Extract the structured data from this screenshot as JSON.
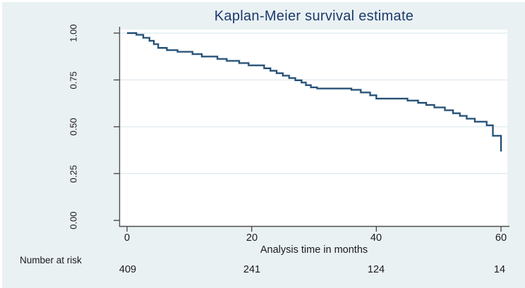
{
  "chart_data": {
    "type": "line",
    "subtype": "step-survival",
    "title": "Kaplan-Meier survival estimate",
    "xlabel": "Analysis time in months",
    "ylabel": "",
    "xlim": [
      0,
      60
    ],
    "ylim": [
      0,
      1
    ],
    "xticks": [
      "0",
      "20",
      "40",
      "60"
    ],
    "xtick_values": [
      0,
      20,
      40,
      60
    ],
    "yticks": [
      "0.00",
      "0.25",
      "0.50",
      "0.75",
      "1.00"
    ],
    "ytick_values": [
      0,
      0.25,
      0.5,
      0.75,
      1.0
    ],
    "grid": true,
    "legend_position": "none",
    "series": [
      {
        "name": "Kaplan-Meier survival estimate",
        "points": [
          [
            0,
            1.0
          ],
          [
            1.5,
            0.991
          ],
          [
            2.6,
            0.975
          ],
          [
            3.6,
            0.959
          ],
          [
            4.3,
            0.941
          ],
          [
            5.0,
            0.921
          ],
          [
            6.4,
            0.909
          ],
          [
            8.1,
            0.9
          ],
          [
            10.5,
            0.888
          ],
          [
            12.0,
            0.875
          ],
          [
            14.5,
            0.862
          ],
          [
            16.0,
            0.852
          ],
          [
            18.0,
            0.84
          ],
          [
            19.5,
            0.828
          ],
          [
            22.0,
            0.812
          ],
          [
            23.0,
            0.799
          ],
          [
            24.0,
            0.786
          ],
          [
            25.0,
            0.773
          ],
          [
            26.0,
            0.76
          ],
          [
            27.0,
            0.748
          ],
          [
            28.0,
            0.736
          ],
          [
            28.7,
            0.722
          ],
          [
            29.5,
            0.71
          ],
          [
            30.5,
            0.704
          ],
          [
            36.0,
            0.697
          ],
          [
            37.5,
            0.683
          ],
          [
            39.0,
            0.668
          ],
          [
            40.0,
            0.65
          ],
          [
            45.0,
            0.64
          ],
          [
            46.7,
            0.628
          ],
          [
            48.0,
            0.616
          ],
          [
            49.3,
            0.603
          ],
          [
            51.0,
            0.588
          ],
          [
            52.3,
            0.572
          ],
          [
            53.4,
            0.558
          ],
          [
            54.5,
            0.543
          ],
          [
            55.8,
            0.527
          ],
          [
            57.7,
            0.508
          ],
          [
            58.7,
            0.452
          ],
          [
            60.0,
            0.368
          ]
        ]
      }
    ],
    "number_at_risk": {
      "label": "Number at risk",
      "times": [
        0,
        20,
        40,
        60
      ],
      "counts": [
        "409",
        "241",
        "124",
        "14"
      ]
    }
  },
  "colors": {
    "background": "#eaf1f3",
    "plot_background": "#ffffff",
    "line": "#1a476f",
    "line_halo": "rgba(26,71,111,0.22)",
    "grid": "#dde9ee",
    "axis": "#4d4d4d",
    "title_text": "#1b3a6b",
    "tick_text": "#1a1a1a"
  }
}
